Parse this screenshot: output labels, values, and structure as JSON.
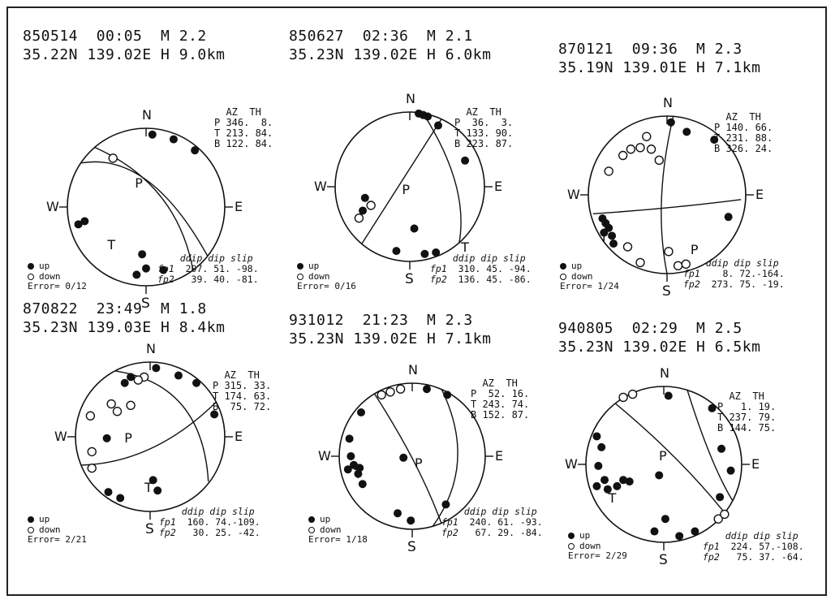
{
  "legend": {
    "up_label": "up",
    "down_label": "down"
  },
  "panels": [
    {
      "id": "850514",
      "header_line1": "850514  00:05  M 2.2",
      "header_line2": "35.22N 139.02E H 9.0km",
      "axes": {
        "N": "N",
        "E": "E",
        "S": "S",
        "W": "W"
      },
      "p_label": "P",
      "t_label": "T",
      "table_header": "  AZ  TH",
      "table_rows": [
        "P 346.  8.",
        "T 213. 84.",
        "B 122. 84."
      ],
      "error": "Error= 0/12",
      "fp_header": "ddip dip slip",
      "fp1_label": "fp1",
      "fp1_values": "207. 51. -98.",
      "fp2_label": "fp2",
      "fp2_values": " 39. 40. -81.",
      "up_points": [
        [
          0.08,
          -0.92
        ],
        [
          0.35,
          -0.86
        ],
        [
          0.62,
          -0.72
        ],
        [
          -0.78,
          0.18
        ],
        [
          -0.86,
          0.22
        ],
        [
          -0.05,
          0.6
        ],
        [
          0.0,
          0.78
        ],
        [
          -0.12,
          0.86
        ],
        [
          0.22,
          0.8
        ]
      ],
      "down_points": [
        [
          -0.42,
          -0.62
        ]
      ],
      "planes": [
        {
          "start": [
            -0.82,
            -0.56
          ],
          "ctrl": [
            0.05,
            -0.7
          ],
          "end": [
            0.78,
            0.62
          ]
        },
        {
          "start": [
            -0.66,
            -0.76
          ],
          "ctrl": [
            0.4,
            -0.3
          ],
          "end": [
            0.6,
            0.82
          ]
        }
      ],
      "tick_e": 1,
      "tick_w": 1,
      "tick_s": 1
    },
    {
      "id": "850627",
      "header_line1": "850627  02:36  M 2.1",
      "header_line2": "35.23N 139.02E H 6.0km",
      "axes": {
        "N": "N",
        "E": "E",
        "S": "S",
        "W": "W"
      },
      "p_label": "P",
      "t_label": "T",
      "table_header": "  AZ  TH",
      "table_rows": [
        "P  36.  3.",
        "T 133. 90.",
        "B 223. 87."
      ],
      "error": "Error= 0/16",
      "fp_header": "ddip dip slip",
      "fp1_label": "fp1",
      "fp1_values": "310. 45. -94.",
      "fp2_label": "fp2",
      "fp2_values": "136. 45. -86.",
      "up_points": [
        [
          0.12,
          -0.98
        ],
        [
          0.18,
          -0.96
        ],
        [
          0.24,
          -0.94
        ],
        [
          0.38,
          -0.82
        ],
        [
          0.74,
          -0.35
        ],
        [
          -0.6,
          0.15
        ],
        [
          -0.63,
          0.32
        ],
        [
          0.06,
          0.56
        ],
        [
          -0.18,
          0.86
        ],
        [
          0.2,
          0.9
        ],
        [
          0.35,
          0.88
        ]
      ],
      "down_points": [
        [
          -0.68,
          0.42
        ],
        [
          -0.52,
          0.25
        ]
      ],
      "planes": [
        {
          "start": [
            -0.64,
            0.76
          ],
          "ctrl": [
            0.1,
            -0.4
          ],
          "end": [
            0.42,
            -0.9
          ]
        },
        {
          "start": [
            0.18,
            -0.98
          ],
          "ctrl": [
            0.8,
            0.0
          ],
          "end": [
            0.66,
            0.76
          ]
        }
      ],
      "tick_e": 1,
      "tick_w": 1,
      "tick_s": 1
    },
    {
      "id": "870121",
      "header_line1": "870121  09:36  M 2.3",
      "header_line2": "35.19N 139.01E H 7.1km",
      "axes": {
        "N": "N",
        "E": "E",
        "S": "S",
        "W": "W"
      },
      "p_label": "P",
      "t_label": "T",
      "table_header": "  AZ  TH",
      "table_rows": [
        "P 140. 66.",
        "T 231. 88.",
        "B 326. 24."
      ],
      "error": "Error= 1/24",
      "fp_header": "ddip dip slip",
      "fp1_label": "fp1",
      "fp1_values": "  8. 72.-164.",
      "fp2_label": "fp2",
      "fp2_values": "273. 75. -19.",
      "up_points": [
        [
          0.05,
          -0.92
        ],
        [
          0.25,
          -0.8
        ],
        [
          0.6,
          -0.7
        ],
        [
          0.78,
          0.28
        ],
        [
          -0.82,
          0.3
        ],
        [
          -0.78,
          0.36
        ],
        [
          -0.74,
          0.42
        ],
        [
          -0.8,
          0.48
        ],
        [
          -0.7,
          0.52
        ],
        [
          -0.68,
          0.62
        ]
      ],
      "down_points": [
        [
          -0.26,
          -0.74
        ],
        [
          -0.46,
          -0.58
        ],
        [
          -0.34,
          -0.6
        ],
        [
          -0.2,
          -0.58
        ],
        [
          -0.56,
          -0.5
        ],
        [
          -0.1,
          -0.44
        ],
        [
          -0.74,
          -0.3
        ],
        [
          -0.5,
          0.66
        ],
        [
          -0.34,
          0.86
        ],
        [
          0.02,
          0.72
        ],
        [
          0.14,
          0.9
        ],
        [
          0.24,
          0.88
        ]
      ],
      "planes": [
        {
          "start": [
            -0.94,
            0.24
          ],
          "ctrl": [
            0.0,
            0.18
          ],
          "end": [
            0.94,
            0.06
          ]
        },
        {
          "start": [
            0.08,
            -1.0
          ],
          "ctrl": [
            -0.18,
            0.1
          ],
          "end": [
            0.0,
            1.0
          ]
        }
      ],
      "tick_e": 1,
      "tick_w": 1,
      "tick_s": 1
    },
    {
      "id": "870822",
      "header_line1": "870822  23:49  M 1.8",
      "header_line2": "35.23N 139.03E H 8.4km",
      "axes": {
        "N": "N",
        "E": "E",
        "S": "S",
        "W": "W"
      },
      "p_label": "P",
      "t_label": "T",
      "table_header": "  AZ  TH",
      "table_rows": [
        "P 315. 33.",
        "T 174. 63.",
        "B  75. 72."
      ],
      "error": "Error= 2/21",
      "fp_header": "ddip dip slip",
      "fp1_label": "fp1",
      "fp1_values": "160. 74.-109.",
      "fp2_label": "fp2",
      "fp2_values": " 30. 25. -42.",
      "up_points": [
        [
          0.08,
          -0.92
        ],
        [
          -0.26,
          -0.8
        ],
        [
          -0.34,
          -0.72
        ],
        [
          0.38,
          -0.82
        ],
        [
          0.62,
          -0.72
        ],
        [
          0.86,
          -0.3
        ],
        [
          -0.58,
          0.02
        ],
        [
          0.04,
          0.58
        ],
        [
          0.1,
          0.72
        ],
        [
          -0.56,
          0.74
        ],
        [
          -0.4,
          0.82
        ]
      ],
      "down_points": [
        [
          -0.08,
          -0.8
        ],
        [
          -0.16,
          -0.76
        ],
        [
          -0.52,
          -0.44
        ],
        [
          -0.44,
          -0.34
        ],
        [
          -0.26,
          -0.42
        ],
        [
          -0.8,
          -0.28
        ],
        [
          -0.78,
          0.2
        ],
        [
          -0.78,
          0.42
        ]
      ],
      "planes": [
        {
          "start": [
            -0.92,
            0.38
          ],
          "ctrl": [
            0.05,
            0.35
          ],
          "end": [
            0.88,
            -0.46
          ]
        },
        {
          "start": [
            -0.46,
            -0.88
          ],
          "ctrl": [
            0.7,
            -0.7
          ],
          "end": [
            0.78,
            0.6
          ]
        }
      ],
      "tick_e": 1,
      "tick_w": 1,
      "tick_s": 1
    },
    {
      "id": "931012",
      "header_line1": "931012  21:23  M 2.3",
      "header_line2": "35.23N 139.02E H 7.1km",
      "axes": {
        "N": "N",
        "E": "E",
        "S": "S",
        "W": "W"
      },
      "p_label": "P",
      "t_label": "T",
      "table_header": "  AZ  TH",
      "table_rows": [
        "P  52. 16.",
        "T 243. 74.",
        "B 152. 87."
      ],
      "error": "Error= 1/18",
      "fp_header": "ddip dip slip",
      "fp1_label": "fp1",
      "fp1_values": "240. 61. -93.",
      "fp2_label": "fp2",
      "fp2_values": " 67. 29. -84.",
      "up_points": [
        [
          0.2,
          -0.92
        ],
        [
          0.48,
          -0.84
        ],
        [
          -0.7,
          -0.6
        ],
        [
          -0.86,
          -0.24
        ],
        [
          -0.84,
          0.0
        ],
        [
          -0.8,
          0.12
        ],
        [
          -0.88,
          0.18
        ],
        [
          -0.72,
          0.16
        ],
        [
          -0.74,
          0.24
        ],
        [
          -0.68,
          0.38
        ],
        [
          -0.12,
          0.02
        ],
        [
          0.46,
          0.66
        ],
        [
          -0.2,
          0.78
        ],
        [
          -0.02,
          0.88
        ]
      ],
      "down_points": [
        [
          -0.42,
          -0.84
        ],
        [
          -0.3,
          -0.88
        ],
        [
          -0.16,
          -0.92
        ]
      ],
      "planes": [
        {
          "start": [
            -0.52,
            -0.86
          ],
          "ctrl": [
            0.1,
            0.1
          ],
          "end": [
            0.4,
            0.92
          ]
        },
        {
          "start": [
            0.4,
            -0.92
          ],
          "ctrl": [
            0.9,
            0.1
          ],
          "end": [
            0.28,
            0.96
          ]
        }
      ],
      "tick_e": 1,
      "tick_w": 1,
      "tick_s": 1
    },
    {
      "id": "940805",
      "header_line1": "940805  02:29  M 2.5",
      "header_line2": "35.23N 139.02E H 6.5km",
      "axes": {
        "N": "N",
        "E": "E",
        "S": "S",
        "W": "W"
      },
      "p_label": "P",
      "t_label": "T",
      "table_header": "  AZ  TH",
      "table_rows": [
        "P   1. 19.",
        "T 237. 79.",
        "B 144. 75."
      ],
      "error": "Error= 2/29",
      "fp_header": "ddip dip slip",
      "fp1_label": "fp1",
      "fp1_values": "224. 57.-108.",
      "fp2_label": "fp2",
      "fp2_values": " 75. 37. -64.",
      "up_points": [
        [
          0.06,
          -0.88
        ],
        [
          0.62,
          -0.72
        ],
        [
          0.74,
          -0.2
        ],
        [
          0.72,
          0.42
        ],
        [
          0.86,
          0.08
        ],
        [
          -0.86,
          -0.36
        ],
        [
          -0.8,
          -0.22
        ],
        [
          -0.84,
          0.02
        ],
        [
          -0.76,
          0.2
        ],
        [
          -0.86,
          0.28
        ],
        [
          -0.72,
          0.32
        ],
        [
          -0.6,
          0.28
        ],
        [
          -0.52,
          0.2
        ],
        [
          -0.44,
          0.22
        ],
        [
          -0.06,
          0.14
        ],
        [
          0.02,
          0.7
        ],
        [
          -0.12,
          0.86
        ],
        [
          0.2,
          0.92
        ],
        [
          0.4,
          0.86
        ]
      ],
      "down_points": [
        [
          -0.52,
          -0.86
        ],
        [
          -0.4,
          -0.9
        ],
        [
          0.7,
          0.7
        ],
        [
          0.78,
          0.64
        ]
      ],
      "planes": [
        {
          "start": [
            -0.62,
            -0.78
          ],
          "ctrl": [
            0.2,
            -0.1
          ],
          "end": [
            0.78,
            0.62
          ]
        },
        {
          "start": [
            0.3,
            -0.96
          ],
          "ctrl": [
            0.6,
            0.0
          ],
          "end": [
            0.88,
            0.46
          ]
        }
      ],
      "tick_e": 1,
      "tick_w": 1,
      "tick_s": 1
    }
  ]
}
